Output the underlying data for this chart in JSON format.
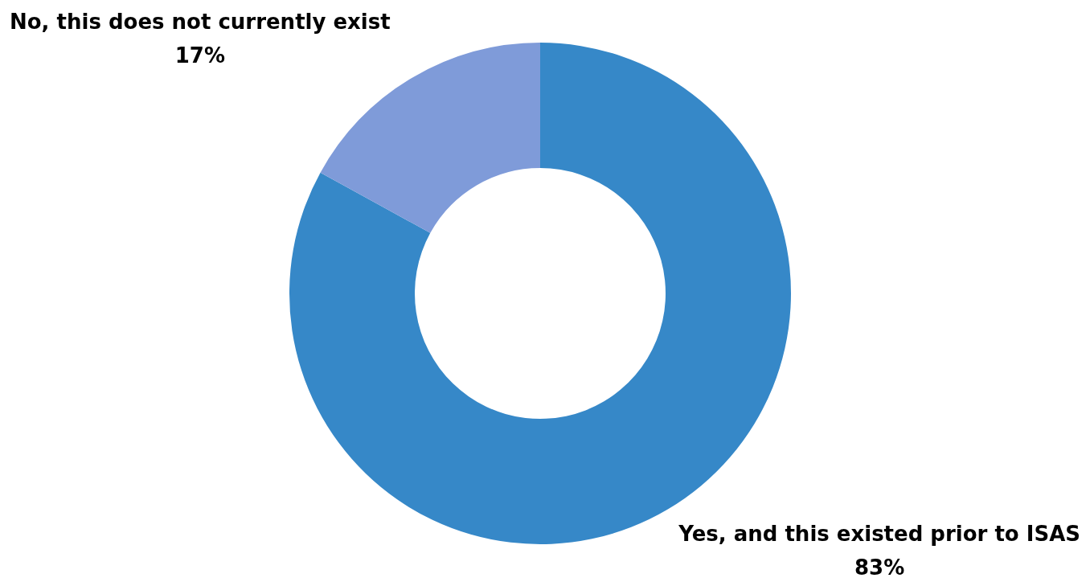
{
  "chart_data": {
    "type": "donut",
    "categories": [
      "Yes, and this existed prior to ISAS",
      "No, this does not currently exist"
    ],
    "values": [
      83,
      17
    ],
    "colors": [
      "#3688c8",
      "#7f9bd9"
    ],
    "value_labels": [
      "83%",
      "17%"
    ]
  }
}
